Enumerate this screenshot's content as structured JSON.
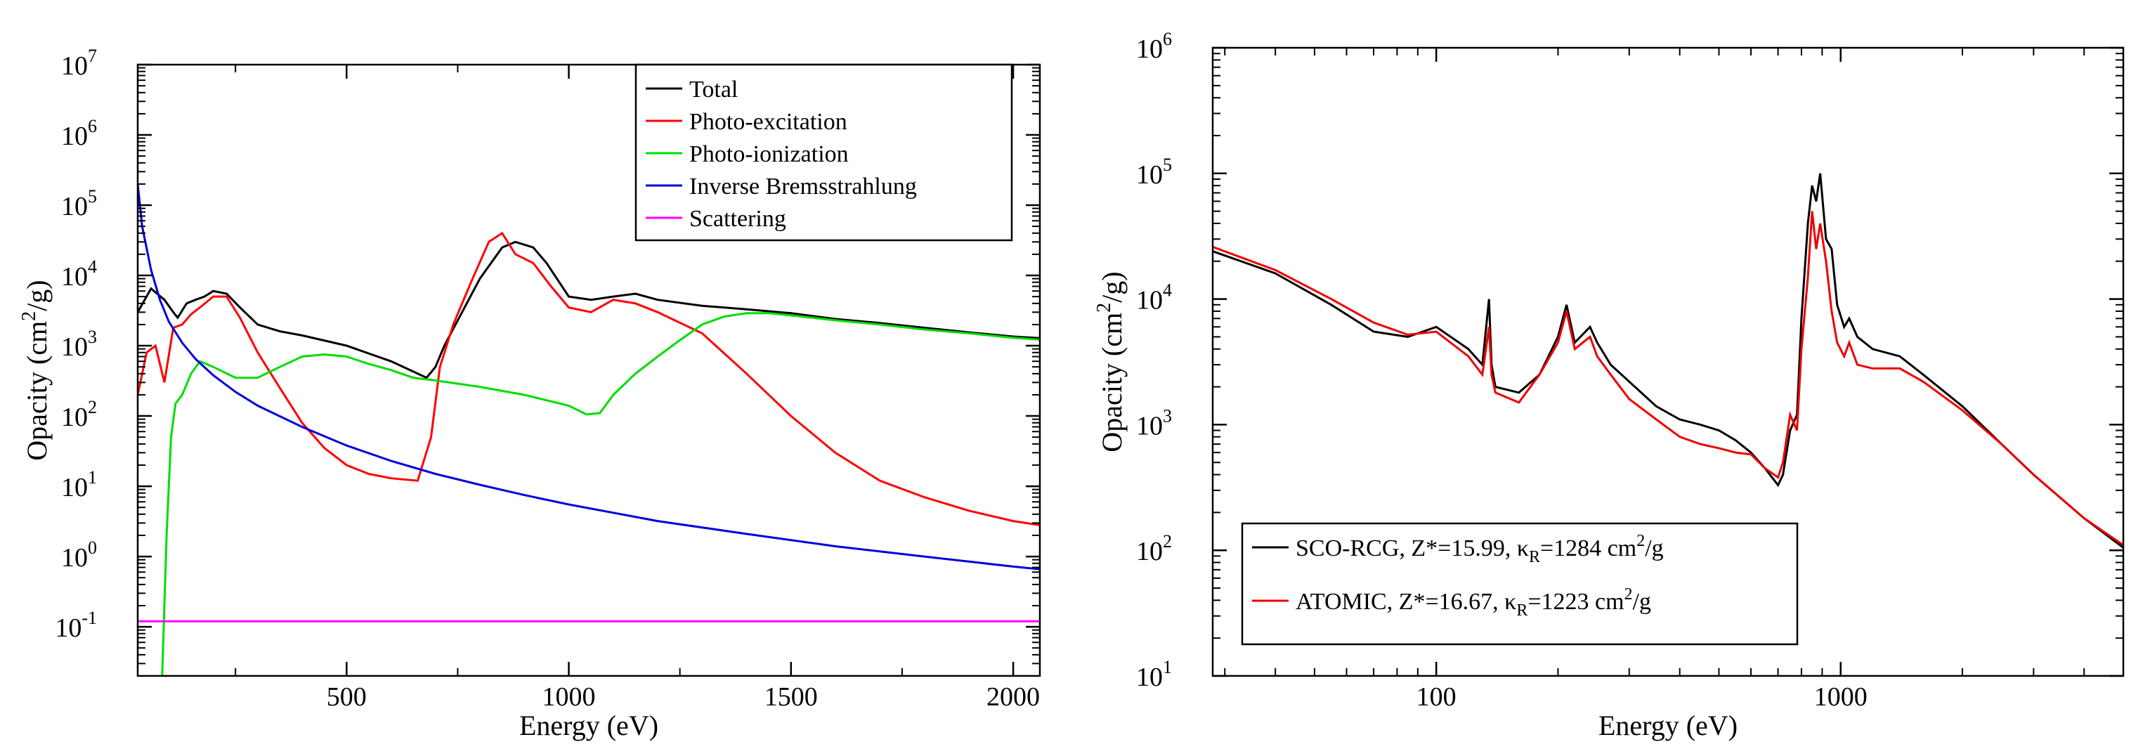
{
  "chart_data": [
    {
      "type": "line",
      "xlabel": "Energy (eV)",
      "ylabel_base": "Opacity (cm",
      "ylabel_sup": "2",
      "ylabel_end": "/g)",
      "x_scale": "linear",
      "y_scale": "log",
      "xlim": [
        30,
        2060
      ],
      "ylim": [
        0.02,
        10000000
      ],
      "x_ticks": [
        500,
        1000,
        1500,
        2000
      ],
      "x_tick_labels": [
        "500",
        "1000",
        "1500",
        "2000"
      ],
      "y_tick_exponents": [
        -1,
        0,
        1,
        2,
        3,
        4,
        5,
        6,
        7
      ],
      "y_tick_base": "10",
      "legend_position": "top-right",
      "series": [
        {
          "name": "Total",
          "color": "#000000",
          "points": [
            [
              30,
              3000
            ],
            [
              60,
              6500
            ],
            [
              90,
              4500
            ],
            [
              110,
              3000
            ],
            [
              120,
              2500
            ],
            [
              140,
              4000
            ],
            [
              160,
              4500
            ],
            [
              180,
              5000
            ],
            [
              200,
              6000
            ],
            [
              230,
              5500
            ],
            [
              260,
              3500
            ],
            [
              300,
              2000
            ],
            [
              350,
              1600
            ],
            [
              400,
              1400
            ],
            [
              500,
              1000
            ],
            [
              600,
              600
            ],
            [
              680,
              350
            ],
            [
              700,
              500
            ],
            [
              720,
              1000
            ],
            [
              760,
              3000
            ],
            [
              800,
              9000
            ],
            [
              850,
              25000
            ],
            [
              880,
              30000
            ],
            [
              920,
              25000
            ],
            [
              950,
              15000
            ],
            [
              1000,
              5000
            ],
            [
              1050,
              4500
            ],
            [
              1100,
              5000
            ],
            [
              1150,
              5500
            ],
            [
              1200,
              4500
            ],
            [
              1300,
              3700
            ],
            [
              1400,
              3300
            ],
            [
              1500,
              2900
            ],
            [
              1600,
              2400
            ],
            [
              1700,
              2100
            ],
            [
              1800,
              1800
            ],
            [
              1900,
              1550
            ],
            [
              2000,
              1350
            ],
            [
              2060,
              1280
            ]
          ]
        },
        {
          "name": "Photo-excitation",
          "color": "#ff0000",
          "points": [
            [
              30,
              200
            ],
            [
              50,
              800
            ],
            [
              70,
              1000
            ],
            [
              90,
              300
            ],
            [
              110,
              1800
            ],
            [
              130,
              2000
            ],
            [
              150,
              2800
            ],
            [
              170,
              3500
            ],
            [
              200,
              5000
            ],
            [
              230,
              5000
            ],
            [
              260,
              2500
            ],
            [
              300,
              800
            ],
            [
              350,
              250
            ],
            [
              400,
              80
            ],
            [
              450,
              35
            ],
            [
              500,
              20
            ],
            [
              550,
              15
            ],
            [
              600,
              13
            ],
            [
              660,
              12
            ],
            [
              690,
              50
            ],
            [
              710,
              500
            ],
            [
              740,
              2000
            ],
            [
              780,
              8000
            ],
            [
              820,
              30000
            ],
            [
              850,
              40000
            ],
            [
              880,
              20000
            ],
            [
              920,
              15000
            ],
            [
              960,
              7000
            ],
            [
              1000,
              3500
            ],
            [
              1050,
              3000
            ],
            [
              1100,
              4500
            ],
            [
              1150,
              4000
            ],
            [
              1200,
              3000
            ],
            [
              1300,
              1500
            ],
            [
              1400,
              400
            ],
            [
              1500,
              100
            ],
            [
              1600,
              30
            ],
            [
              1700,
              12
            ],
            [
              1800,
              7
            ],
            [
              1900,
              4.5
            ],
            [
              2000,
              3.2
            ],
            [
              2060,
              2.8
            ]
          ]
        },
        {
          "name": "Photo-ionization",
          "color": "#00dd00",
          "points": [
            [
              85,
              0.02
            ],
            [
              95,
              2
            ],
            [
              105,
              50
            ],
            [
              115,
              150
            ],
            [
              130,
              200
            ],
            [
              150,
              400
            ],
            [
              170,
              600
            ],
            [
              200,
              500
            ],
            [
              250,
              350
            ],
            [
              300,
              350
            ],
            [
              350,
              500
            ],
            [
              400,
              700
            ],
            [
              450,
              750
            ],
            [
              500,
              700
            ],
            [
              550,
              550
            ],
            [
              600,
              450
            ],
            [
              650,
              350
            ],
            [
              700,
              320
            ],
            [
              800,
              260
            ],
            [
              900,
              200
            ],
            [
              1000,
              140
            ],
            [
              1040,
              105
            ],
            [
              1070,
              110
            ],
            [
              1100,
              200
            ],
            [
              1150,
              400
            ],
            [
              1200,
              700
            ],
            [
              1250,
              1200
            ],
            [
              1300,
              2000
            ],
            [
              1350,
              2600
            ],
            [
              1400,
              2900
            ],
            [
              1450,
              2900
            ],
            [
              1500,
              2700
            ],
            [
              1600,
              2300
            ],
            [
              1700,
              2000
            ],
            [
              1800,
              1700
            ],
            [
              1900,
              1500
            ],
            [
              2000,
              1300
            ],
            [
              2060,
              1220
            ]
          ]
        },
        {
          "name": "Inverse Bremsstrahlung",
          "color": "#0000dd",
          "points": [
            [
              30,
              200000
            ],
            [
              40,
              50000
            ],
            [
              60,
              12000
            ],
            [
              80,
              4500
            ],
            [
              100,
              2200
            ],
            [
              130,
              1100
            ],
            [
              160,
              650
            ],
            [
              200,
              380
            ],
            [
              250,
              220
            ],
            [
              300,
              140
            ],
            [
              400,
              70
            ],
            [
              500,
              38
            ],
            [
              600,
              23
            ],
            [
              700,
              15
            ],
            [
              800,
              10.5
            ],
            [
              900,
              7.5
            ],
            [
              1000,
              5.5
            ],
            [
              1200,
              3.2
            ],
            [
              1400,
              2.1
            ],
            [
              1600,
              1.4
            ],
            [
              1800,
              1
            ],
            [
              2000,
              0.72
            ],
            [
              2060,
              0.66
            ]
          ]
        },
        {
          "name": "Scattering",
          "color": "#ff00ff",
          "points": [
            [
              30,
              0.12
            ],
            [
              2060,
              0.12
            ]
          ]
        }
      ]
    },
    {
      "type": "line",
      "xlabel": "Energy (eV)",
      "ylabel_base": "Opacity (cm",
      "ylabel_sup": "2",
      "ylabel_end": "/g)",
      "x_scale": "log",
      "y_scale": "log",
      "xlim": [
        28,
        5000
      ],
      "ylim": [
        10,
        1000000
      ],
      "x_ticks": [
        100,
        1000
      ],
      "x_tick_labels": [
        "100",
        "1000"
      ],
      "y_tick_exponents": [
        1,
        2,
        3,
        4,
        5,
        6
      ],
      "y_tick_base": "10",
      "legend_position": "bottom-left",
      "series": [
        {
          "name_prefix": "SCO-RCG, Z*=15.99, ",
          "kappa": "κ",
          "kappa_sub": "R",
          "name_suffix": "=1284 cm",
          "name_sup": "2",
          "name_end": "/g",
          "color": "#000000",
          "points": [
            [
              28,
              24000
            ],
            [
              40,
              16000
            ],
            [
              55,
              9000
            ],
            [
              70,
              5500
            ],
            [
              85,
              5000
            ],
            [
              100,
              6000
            ],
            [
              120,
              4000
            ],
            [
              130,
              3000
            ],
            [
              135,
              10000
            ],
            [
              137,
              3000
            ],
            [
              140,
              2000
            ],
            [
              160,
              1800
            ],
            [
              180,
              2500
            ],
            [
              200,
              5000
            ],
            [
              210,
              9000
            ],
            [
              220,
              4500
            ],
            [
              240,
              6000
            ],
            [
              250,
              4500
            ],
            [
              270,
              3000
            ],
            [
              300,
              2200
            ],
            [
              350,
              1400
            ],
            [
              400,
              1100
            ],
            [
              450,
              1000
            ],
            [
              500,
              900
            ],
            [
              550,
              750
            ],
            [
              600,
              600
            ],
            [
              650,
              450
            ],
            [
              700,
              330
            ],
            [
              720,
              400
            ],
            [
              750,
              900
            ],
            [
              780,
              1200
            ],
            [
              800,
              7000
            ],
            [
              830,
              40000
            ],
            [
              850,
              80000
            ],
            [
              870,
              60000
            ],
            [
              890,
              100000
            ],
            [
              920,
              30000
            ],
            [
              950,
              25000
            ],
            [
              980,
              9000
            ],
            [
              1020,
              6000
            ],
            [
              1050,
              7000
            ],
            [
              1100,
              5000
            ],
            [
              1200,
              4000
            ],
            [
              1400,
              3500
            ],
            [
              1600,
              2500
            ],
            [
              2000,
              1400
            ],
            [
              2500,
              700
            ],
            [
              3000,
              400
            ],
            [
              4000,
              180
            ],
            [
              5000,
              105
            ]
          ]
        },
        {
          "name_prefix": "ATOMIC, Z*=16.67, ",
          "kappa": "κ",
          "kappa_sub": "R",
          "name_suffix": "=1223 cm",
          "name_sup": "2",
          "name_end": "/g",
          "color": "#ee0000",
          "points": [
            [
              28,
              26000
            ],
            [
              40,
              17000
            ],
            [
              55,
              10000
            ],
            [
              70,
              6500
            ],
            [
              85,
              5200
            ],
            [
              100,
              5500
            ],
            [
              120,
              3500
            ],
            [
              130,
              2500
            ],
            [
              135,
              6000
            ],
            [
              137,
              2500
            ],
            [
              140,
              1800
            ],
            [
              160,
              1500
            ],
            [
              180,
              2500
            ],
            [
              200,
              4500
            ],
            [
              210,
              8000
            ],
            [
              220,
              4000
            ],
            [
              240,
              5000
            ],
            [
              250,
              3500
            ],
            [
              270,
              2500
            ],
            [
              300,
              1600
            ],
            [
              350,
              1100
            ],
            [
              400,
              800
            ],
            [
              450,
              700
            ],
            [
              500,
              650
            ],
            [
              550,
              600
            ],
            [
              600,
              580
            ],
            [
              650,
              450
            ],
            [
              700,
              380
            ],
            [
              720,
              500
            ],
            [
              750,
              1200
            ],
            [
              780,
              900
            ],
            [
              800,
              4000
            ],
            [
              830,
              15000
            ],
            [
              850,
              50000
            ],
            [
              870,
              25000
            ],
            [
              890,
              40000
            ],
            [
              920,
              20000
            ],
            [
              950,
              8000
            ],
            [
              980,
              4500
            ],
            [
              1020,
              3500
            ],
            [
              1050,
              4500
            ],
            [
              1100,
              3000
            ],
            [
              1200,
              2800
            ],
            [
              1400,
              2800
            ],
            [
              1600,
              2200
            ],
            [
              2000,
              1300
            ],
            [
              2500,
              700
            ],
            [
              3000,
              400
            ],
            [
              4000,
              180
            ],
            [
              5000,
              110
            ]
          ]
        }
      ]
    }
  ]
}
